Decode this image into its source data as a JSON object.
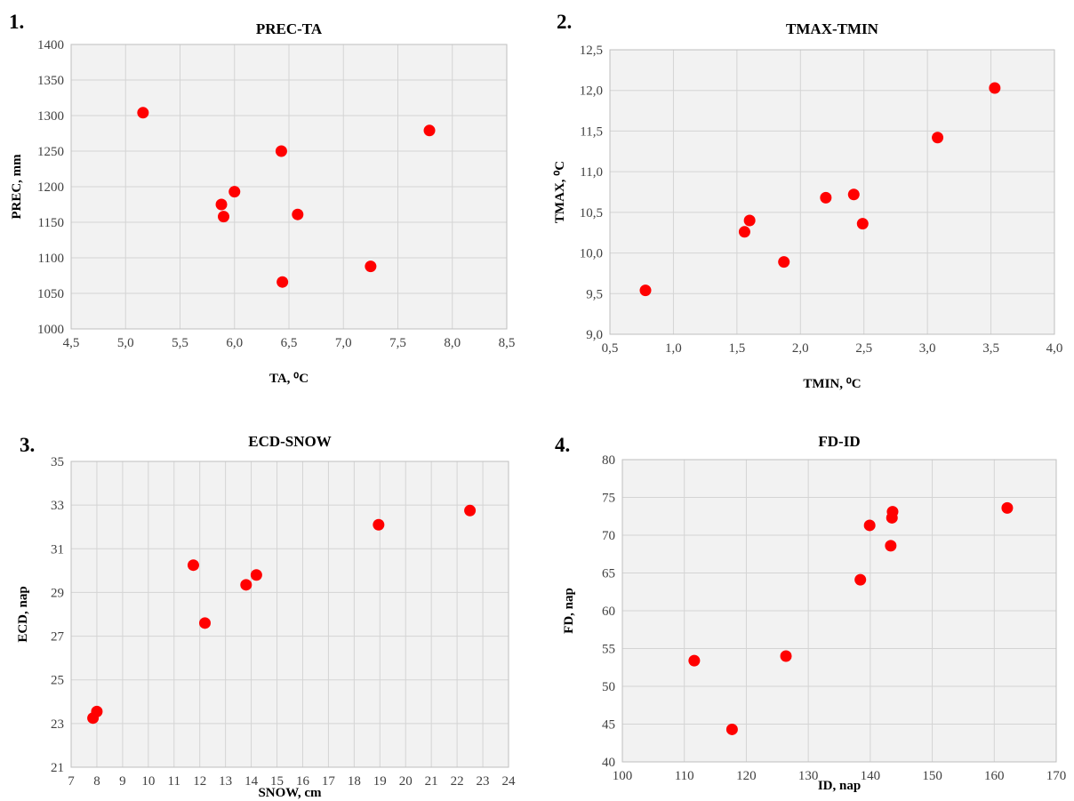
{
  "chart_data": [
    {
      "number": "1.",
      "type": "scatter",
      "title": "PREC-TA",
      "xlabel": "TA, ⁰C",
      "ylabel": "PREC, mm",
      "xlim": [
        4.5,
        8.5
      ],
      "xstep": 0.5,
      "xdecimals": 1,
      "ylim": [
        1000,
        1400
      ],
      "ystep": 50,
      "ydecimals": 0,
      "grid": true,
      "marker_color": "#ff0000",
      "points": [
        {
          "x": 5.16,
          "y": 1304
        },
        {
          "x": 5.88,
          "y": 1175
        },
        {
          "x": 5.9,
          "y": 1158
        },
        {
          "x": 6.0,
          "y": 1193
        },
        {
          "x": 6.43,
          "y": 1250
        },
        {
          "x": 6.44,
          "y": 1066
        },
        {
          "x": 6.58,
          "y": 1161
        },
        {
          "x": 7.25,
          "y": 1088
        },
        {
          "x": 7.79,
          "y": 1279
        }
      ]
    },
    {
      "number": "2.",
      "type": "scatter",
      "title": "TMAX-TMIN",
      "xlabel": "TMIN, ⁰C",
      "ylabel": "TMAX, ⁰C",
      "xlim": [
        0.5,
        4.0
      ],
      "xstep": 0.5,
      "xdecimals": 1,
      "ylim": [
        9.0,
        12.5
      ],
      "ystep": 0.5,
      "ydecimals": 1,
      "grid": true,
      "marker_color": "#ff0000",
      "points": [
        {
          "x": 0.78,
          "y": 9.54
        },
        {
          "x": 1.56,
          "y": 10.26
        },
        {
          "x": 1.6,
          "y": 10.4
        },
        {
          "x": 1.87,
          "y": 9.89
        },
        {
          "x": 2.2,
          "y": 10.68
        },
        {
          "x": 2.42,
          "y": 10.72
        },
        {
          "x": 2.49,
          "y": 10.36
        },
        {
          "x": 3.08,
          "y": 11.42
        },
        {
          "x": 3.53,
          "y": 12.03
        }
      ]
    },
    {
      "number": "3.",
      "type": "scatter",
      "title": "ECD-SNOW",
      "xlabel": "SNOW, cm",
      "ylabel": "ECD, nap",
      "xlim": [
        7,
        24
      ],
      "xstep": 1,
      "xdecimals": 0,
      "ylim": [
        21,
        35
      ],
      "ystep": 2,
      "ydecimals": 0,
      "grid": true,
      "marker_color": "#ff0000",
      "points": [
        {
          "x": 7.85,
          "y": 23.25
        },
        {
          "x": 8.0,
          "y": 23.55
        },
        {
          "x": 11.75,
          "y": 30.25
        },
        {
          "x": 12.2,
          "y": 27.6
        },
        {
          "x": 13.8,
          "y": 29.35
        },
        {
          "x": 14.2,
          "y": 29.8
        },
        {
          "x": 18.95,
          "y": 32.1
        },
        {
          "x": 22.5,
          "y": 32.75
        }
      ]
    },
    {
      "number": "4.",
      "type": "scatter",
      "title": "FD-ID",
      "xlabel": "ID, nap",
      "ylabel": "FD, nap",
      "xlim": [
        100,
        170
      ],
      "xstep": 10,
      "xdecimals": 0,
      "ylim": [
        40,
        80
      ],
      "ystep": 5,
      "ydecimals": 0,
      "grid": true,
      "marker_color": "#ff0000",
      "points": [
        {
          "x": 111.6,
          "y": 53.4
        },
        {
          "x": 117.7,
          "y": 44.3
        },
        {
          "x": 126.4,
          "y": 54.0
        },
        {
          "x": 138.4,
          "y": 64.1
        },
        {
          "x": 139.9,
          "y": 71.3
        },
        {
          "x": 143.3,
          "y": 68.6
        },
        {
          "x": 143.5,
          "y": 72.3
        },
        {
          "x": 143.6,
          "y": 73.1
        },
        {
          "x": 162.1,
          "y": 73.6
        }
      ]
    }
  ]
}
